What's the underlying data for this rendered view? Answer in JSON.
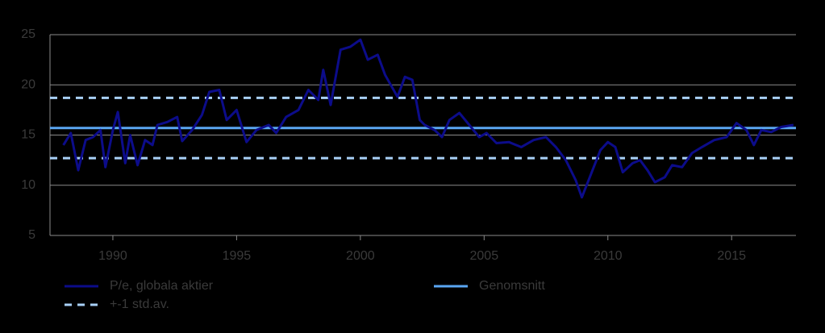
{
  "chart_data": {
    "type": "line",
    "series": [
      {
        "name": "P/e, globala aktier",
        "color": "#0c0c8a",
        "x": [
          1988.0,
          1988.3,
          1988.6,
          1988.9,
          1989.2,
          1989.5,
          1989.7,
          1990.0,
          1990.2,
          1990.5,
          1990.7,
          1991.0,
          1991.3,
          1991.6,
          1991.8,
          1992.2,
          1992.6,
          1992.8,
          1993.2,
          1993.6,
          1993.9,
          1994.3,
          1994.6,
          1995.0,
          1995.4,
          1995.8,
          1996.3,
          1996.6,
          1997.0,
          1997.5,
          1997.9,
          1998.3,
          1998.5,
          1998.8,
          1999.2,
          1999.6,
          2000.0,
          2000.3,
          2000.7,
          2001.0,
          2001.5,
          2001.8,
          2002.1,
          2002.4,
          2002.6,
          2003.0,
          2003.3,
          2003.6,
          2004.0,
          2004.4,
          2004.8,
          2005.1,
          2005.5,
          2006.0,
          2006.5,
          2007.0,
          2007.5,
          2007.9,
          2008.3,
          2008.7,
          2008.95,
          2009.3,
          2009.7,
          2010.0,
          2010.3,
          2010.6,
          2011.0,
          2011.3,
          2011.6,
          2011.9,
          2012.3,
          2012.6,
          2013.0,
          2013.4,
          2013.8,
          2014.3,
          2014.8,
          2015.2,
          2015.6,
          2015.9,
          2016.2,
          2016.6,
          2017.0,
          2017.5
        ],
        "values": [
          14,
          15.2,
          11.5,
          14.5,
          14.8,
          15.5,
          11.8,
          15.5,
          17.3,
          12.2,
          15,
          12,
          14.5,
          14,
          16,
          16.3,
          16.8,
          14.4,
          15.5,
          17,
          19.3,
          19.5,
          16.5,
          17.5,
          14.3,
          15.5,
          16,
          15.2,
          16.8,
          17.5,
          19.5,
          18.5,
          21.5,
          18,
          23.5,
          23.8,
          24.5,
          22.5,
          23,
          21,
          18.8,
          20.8,
          20.5,
          16.5,
          16,
          15.5,
          14.8,
          16.5,
          17.2,
          16,
          14.8,
          15.2,
          14.2,
          14.3,
          13.8,
          14.5,
          14.8,
          13.8,
          12.5,
          10.5,
          8.8,
          11,
          13.5,
          14.3,
          13.8,
          11.3,
          12.2,
          12.5,
          11.5,
          10.3,
          10.8,
          12,
          11.8,
          13.2,
          13.8,
          14.5,
          14.8,
          16.2,
          15.5,
          14,
          15.5,
          15.3,
          15.8,
          16
        ]
      }
    ],
    "reference_lines": [
      {
        "name": "Genomsnitt",
        "color": "#5aa6f2",
        "values": [
          15.7
        ],
        "dashed": false
      },
      {
        "name": "+-1 std.av.",
        "color": "#a8d0f7",
        "values": [
          18.7,
          12.7
        ],
        "dashed": true
      }
    ],
    "xlim": [
      1987.46,
      2017.6
    ],
    "xticks": [
      1990,
      1995,
      2000,
      2005,
      2010,
      2015
    ],
    "ylim": [
      5,
      25
    ],
    "yticks": [
      5,
      10,
      15,
      20,
      25
    ],
    "grid": true
  }
}
